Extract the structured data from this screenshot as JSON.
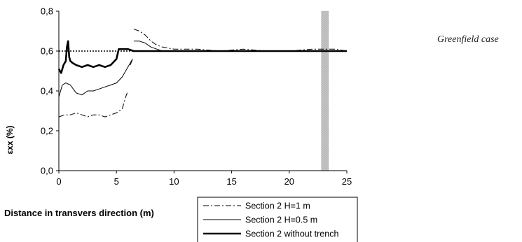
{
  "chart_data": {
    "type": "line",
    "title": "",
    "xlabel": "Distance in transvers direction (m)",
    "ylabel": "εxx (%)",
    "xlim": [
      0,
      25
    ],
    "ylim": [
      0,
      0.8
    ],
    "x_ticks": [
      "0",
      "5",
      "10",
      "15",
      "20",
      "25"
    ],
    "y_ticks": [
      "0,0",
      "0,2",
      "0,4",
      "0,6",
      "0,8"
    ],
    "annotation": "Greenfield case",
    "highlight_band": {
      "x_from": 22.8,
      "x_to": 23.4,
      "color": "#c8c8c8"
    },
    "legend_position": "bottom-right",
    "series": [
      {
        "name": "Section 2 H=1 m",
        "style": "dash-dot",
        "color": "#000000",
        "segments": [
          [
            [
              0.0,
              0.27
            ],
            [
              0.5,
              0.28
            ],
            [
              1.0,
              0.28
            ],
            [
              1.5,
              0.29
            ],
            [
              2.0,
              0.28
            ],
            [
              2.5,
              0.27
            ],
            [
              3.0,
              0.28
            ],
            [
              3.5,
              0.28
            ],
            [
              4.0,
              0.27
            ],
            [
              4.5,
              0.28
            ],
            [
              5.0,
              0.29
            ],
            [
              5.5,
              0.31
            ],
            [
              5.8,
              0.37
            ],
            [
              6.0,
              0.4
            ]
          ],
          [
            [
              6.2,
              0.53
            ],
            [
              6.4,
              0.56
            ]
          ],
          [
            [
              6.5,
              0.71
            ],
            [
              7.0,
              0.7
            ],
            [
              7.5,
              0.68
            ],
            [
              8.0,
              0.65
            ],
            [
              8.5,
              0.63
            ],
            [
              9.0,
              0.62
            ],
            [
              10.0,
              0.61
            ],
            [
              12.0,
              0.61
            ],
            [
              14.0,
              0.6
            ],
            [
              16.0,
              0.61
            ],
            [
              18.0,
              0.6
            ],
            [
              20.0,
              0.6
            ],
            [
              22.0,
              0.61
            ],
            [
              24.0,
              0.61
            ],
            [
              25.0,
              0.6
            ]
          ]
        ]
      },
      {
        "name": "Section 2 H=0.5 m",
        "style": "solid-thin",
        "color": "#000000",
        "segments": [
          [
            [
              0.0,
              0.37
            ],
            [
              0.3,
              0.43
            ],
            [
              0.6,
              0.44
            ],
            [
              1.0,
              0.43
            ],
            [
              1.5,
              0.39
            ],
            [
              2.0,
              0.38
            ],
            [
              2.5,
              0.4
            ],
            [
              3.0,
              0.4
            ],
            [
              3.5,
              0.41
            ],
            [
              4.0,
              0.42
            ],
            [
              4.5,
              0.43
            ],
            [
              5.0,
              0.44
            ],
            [
              5.5,
              0.47
            ],
            [
              6.0,
              0.52
            ],
            [
              6.4,
              0.56
            ]
          ],
          [
            [
              6.5,
              0.65
            ],
            [
              7.0,
              0.65
            ],
            [
              7.5,
              0.64
            ],
            [
              8.0,
              0.62
            ],
            [
              8.5,
              0.61
            ],
            [
              9.0,
              0.6
            ],
            [
              10.0,
              0.6
            ],
            [
              12.0,
              0.6
            ],
            [
              14.0,
              0.6
            ],
            [
              16.0,
              0.6
            ],
            [
              18.0,
              0.6
            ],
            [
              20.0,
              0.6
            ],
            [
              22.0,
              0.6
            ],
            [
              24.0,
              0.6
            ],
            [
              25.0,
              0.6
            ]
          ]
        ]
      },
      {
        "name": "Section 2 without trench",
        "style": "solid-thick",
        "color": "#000000",
        "segments": [
          [
            [
              0.0,
              0.51
            ],
            [
              0.2,
              0.49
            ],
            [
              0.4,
              0.53
            ],
            [
              0.6,
              0.55
            ],
            [
              0.7,
              0.62
            ],
            [
              0.8,
              0.65
            ],
            [
              0.9,
              0.57
            ],
            [
              1.0,
              0.55
            ],
            [
              1.2,
              0.54
            ],
            [
              1.5,
              0.53
            ],
            [
              2.0,
              0.52
            ],
            [
              2.5,
              0.53
            ],
            [
              3.0,
              0.52
            ],
            [
              3.5,
              0.53
            ],
            [
              4.0,
              0.52
            ],
            [
              4.5,
              0.53
            ],
            [
              5.0,
              0.56
            ],
            [
              5.2,
              0.61
            ],
            [
              5.5,
              0.61
            ],
            [
              6.0,
              0.61
            ],
            [
              6.5,
              0.6
            ],
            [
              7.0,
              0.6
            ],
            [
              8.0,
              0.6
            ],
            [
              10.0,
              0.6
            ],
            [
              12.0,
              0.6
            ],
            [
              14.0,
              0.6
            ],
            [
              16.0,
              0.6
            ],
            [
              18.0,
              0.6
            ],
            [
              20.0,
              0.6
            ],
            [
              22.0,
              0.6
            ],
            [
              24.0,
              0.6
            ],
            [
              25.0,
              0.6
            ]
          ]
        ]
      },
      {
        "name": "",
        "style": "dotted",
        "color": "#000000",
        "segments": [
          [
            [
              0.0,
              0.6
            ],
            [
              25.0,
              0.6
            ]
          ]
        ]
      }
    ]
  }
}
